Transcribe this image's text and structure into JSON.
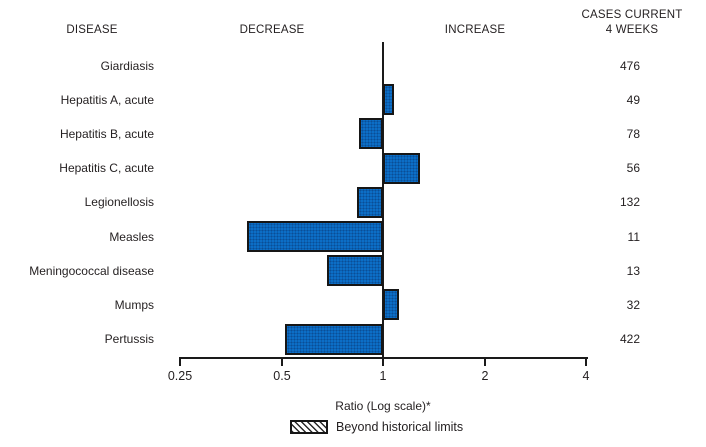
{
  "header": {
    "disease": "DISEASE",
    "decrease": "DECREASE",
    "increase": "INCREASE",
    "cases_line1": "CASES CURRENT",
    "cases_line2": "4 WEEKS"
  },
  "axis": {
    "label": "Ratio (Log scale)*",
    "ticks": [
      "0.25",
      "0.5",
      "1",
      "2",
      "4"
    ]
  },
  "legend": {
    "label": "Beyond historical limits"
  },
  "colors": {
    "bar_fill": "#0c6ec6",
    "bar_border": "#161616",
    "text": "#231f20"
  },
  "chart_data": {
    "type": "bar",
    "orientation": "horizontal",
    "scale": "log",
    "baseline_value": 1,
    "xlim": [
      0.25,
      4
    ],
    "xlabel": "Ratio (Log scale)*",
    "tick_values": [
      0.25,
      0.5,
      1,
      2,
      4
    ],
    "legend": [
      "Beyond historical limits"
    ],
    "columns": [
      "DISEASE",
      "Ratio",
      "CASES CURRENT 4 WEEKS"
    ],
    "rows": [
      {
        "label": "Giardiasis",
        "ratio": 1.0,
        "cases": "476",
        "beyond_limits": false
      },
      {
        "label": "Hepatitis A, acute",
        "ratio": 1.06,
        "cases": "49",
        "beyond_limits": false
      },
      {
        "label": "Hepatitis B, acute",
        "ratio": 0.86,
        "cases": "78",
        "beyond_limits": false
      },
      {
        "label": "Hepatitis C, acute",
        "ratio": 1.27,
        "cases": "56",
        "beyond_limits": false
      },
      {
        "label": "Legionellosis",
        "ratio": 0.85,
        "cases": "132",
        "beyond_limits": false
      },
      {
        "label": "Measles",
        "ratio": 0.4,
        "cases": "11",
        "beyond_limits": false
      },
      {
        "label": "Meningococcal disease",
        "ratio": 0.69,
        "cases": "13",
        "beyond_limits": false
      },
      {
        "label": "Mumps",
        "ratio": 1.1,
        "cases": "32",
        "beyond_limits": false
      },
      {
        "label": "Pertussis",
        "ratio": 0.52,
        "cases": "422",
        "beyond_limits": false
      }
    ]
  }
}
